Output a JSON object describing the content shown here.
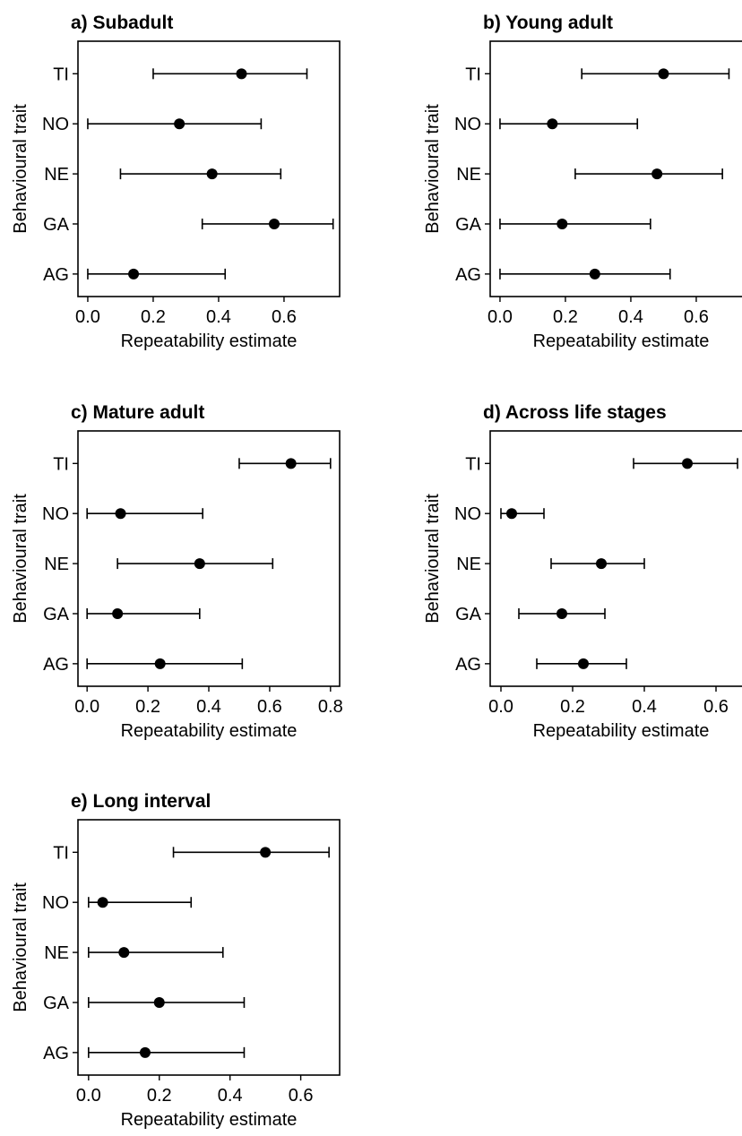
{
  "chart_data": [
    {
      "type": "scatter",
      "title": "a) Subadult",
      "xlabel": "Repeatability estimate",
      "ylabel": "Behavioural trait",
      "categories": [
        "TI",
        "NO",
        "NE",
        "GA",
        "AG"
      ],
      "xlim": [
        -0.03,
        0.77
      ],
      "xticks": [
        "0.0",
        "0.2",
        "0.4",
        "0.6"
      ],
      "estimates": [
        0.47,
        0.28,
        0.38,
        0.57,
        0.14
      ],
      "lower": [
        0.2,
        0.0,
        0.1,
        0.35,
        0.0
      ],
      "upper": [
        0.67,
        0.53,
        0.59,
        0.75,
        0.42
      ]
    },
    {
      "type": "scatter",
      "title": "b) Young adult",
      "xlabel": "Repeatability estimate",
      "ylabel": "Behavioural trait",
      "categories": [
        "TI",
        "NO",
        "NE",
        "GA",
        "AG"
      ],
      "xlim": [
        -0.03,
        0.77
      ],
      "xticks": [
        "0.0",
        "0.2",
        "0.4",
        "0.6"
      ],
      "estimates": [
        0.5,
        0.16,
        0.48,
        0.19,
        0.29
      ],
      "lower": [
        0.25,
        0.0,
        0.23,
        0.0,
        0.0
      ],
      "upper": [
        0.7,
        0.42,
        0.68,
        0.46,
        0.52
      ]
    },
    {
      "type": "scatter",
      "title": "c) Mature adult",
      "xlabel": "Repeatability estimate",
      "ylabel": "Behavioural trait",
      "categories": [
        "TI",
        "NO",
        "NE",
        "GA",
        "AG"
      ],
      "xlim": [
        -0.03,
        0.83
      ],
      "xticks": [
        "0.0",
        "0.2",
        "0.4",
        "0.6",
        "0.8"
      ],
      "estimates": [
        0.67,
        0.11,
        0.37,
        0.1,
        0.24
      ],
      "lower": [
        0.5,
        0.0,
        0.1,
        0.0,
        0.0
      ],
      "upper": [
        0.8,
        0.38,
        0.61,
        0.37,
        0.51
      ]
    },
    {
      "type": "scatter",
      "title": "d) Across life stages",
      "xlabel": "Repeatability estimate",
      "ylabel": "Behavioural trait",
      "categories": [
        "TI",
        "NO",
        "NE",
        "GA",
        "AG"
      ],
      "xlim": [
        -0.03,
        0.7
      ],
      "xticks": [
        "0.0",
        "0.2",
        "0.4",
        "0.6"
      ],
      "estimates": [
        0.52,
        0.03,
        0.28,
        0.17,
        0.23
      ],
      "lower": [
        0.37,
        0.0,
        0.14,
        0.05,
        0.1
      ],
      "upper": [
        0.66,
        0.12,
        0.4,
        0.29,
        0.35
      ]
    },
    {
      "type": "scatter",
      "title": "e) Long interval",
      "xlabel": "Repeatability estimate",
      "ylabel": "Behavioural trait",
      "categories": [
        "TI",
        "NO",
        "NE",
        "GA",
        "AG"
      ],
      "xlim": [
        -0.03,
        0.71
      ],
      "xticks": [
        "0.0",
        "0.2",
        "0.4",
        "0.6"
      ],
      "estimates": [
        0.5,
        0.04,
        0.1,
        0.2,
        0.16
      ],
      "lower": [
        0.24,
        0.0,
        0.0,
        0.0,
        0.0
      ],
      "upper": [
        0.68,
        0.29,
        0.38,
        0.44,
        0.44
      ]
    }
  ]
}
